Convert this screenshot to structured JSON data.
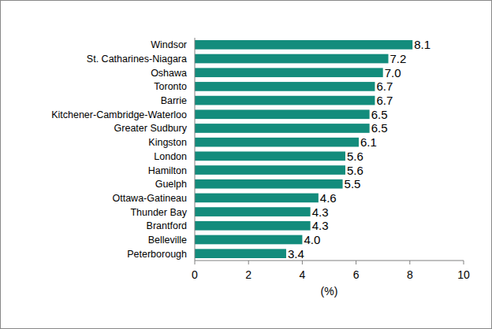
{
  "chart_data": {
    "type": "bar",
    "orientation": "horizontal",
    "categories": [
      "Windsor",
      "St. Catharines-Niagara",
      "Oshawa",
      "Toronto",
      "Barrie",
      "Kitchener-Cambridge-Waterloo",
      "Greater Sudbury",
      "Kingston",
      "London",
      "Hamilton",
      "Guelph",
      "Ottawa-Gatineau",
      "Thunder Bay",
      "Brantford",
      "Belleville",
      "Peterborough"
    ],
    "values": [
      8.1,
      7.2,
      7.0,
      6.7,
      6.7,
      6.5,
      6.5,
      6.1,
      5.6,
      5.6,
      5.5,
      4.6,
      4.3,
      4.3,
      4.0,
      3.4
    ],
    "value_labels": [
      "8.1",
      "7.2",
      "7.0",
      "6.7",
      "6.7",
      "6.5",
      "6.5",
      "6.1",
      "5.6",
      "5.6",
      "5.5",
      "4.6",
      "4.3",
      "4.3",
      "4.0",
      "3.4"
    ],
    "data_labels": true,
    "color": "#138c7c",
    "xlabel": "(%)",
    "xlim": [
      0,
      10
    ],
    "xticks": [
      0,
      2,
      4,
      6,
      8,
      10
    ],
    "grid": false
  }
}
